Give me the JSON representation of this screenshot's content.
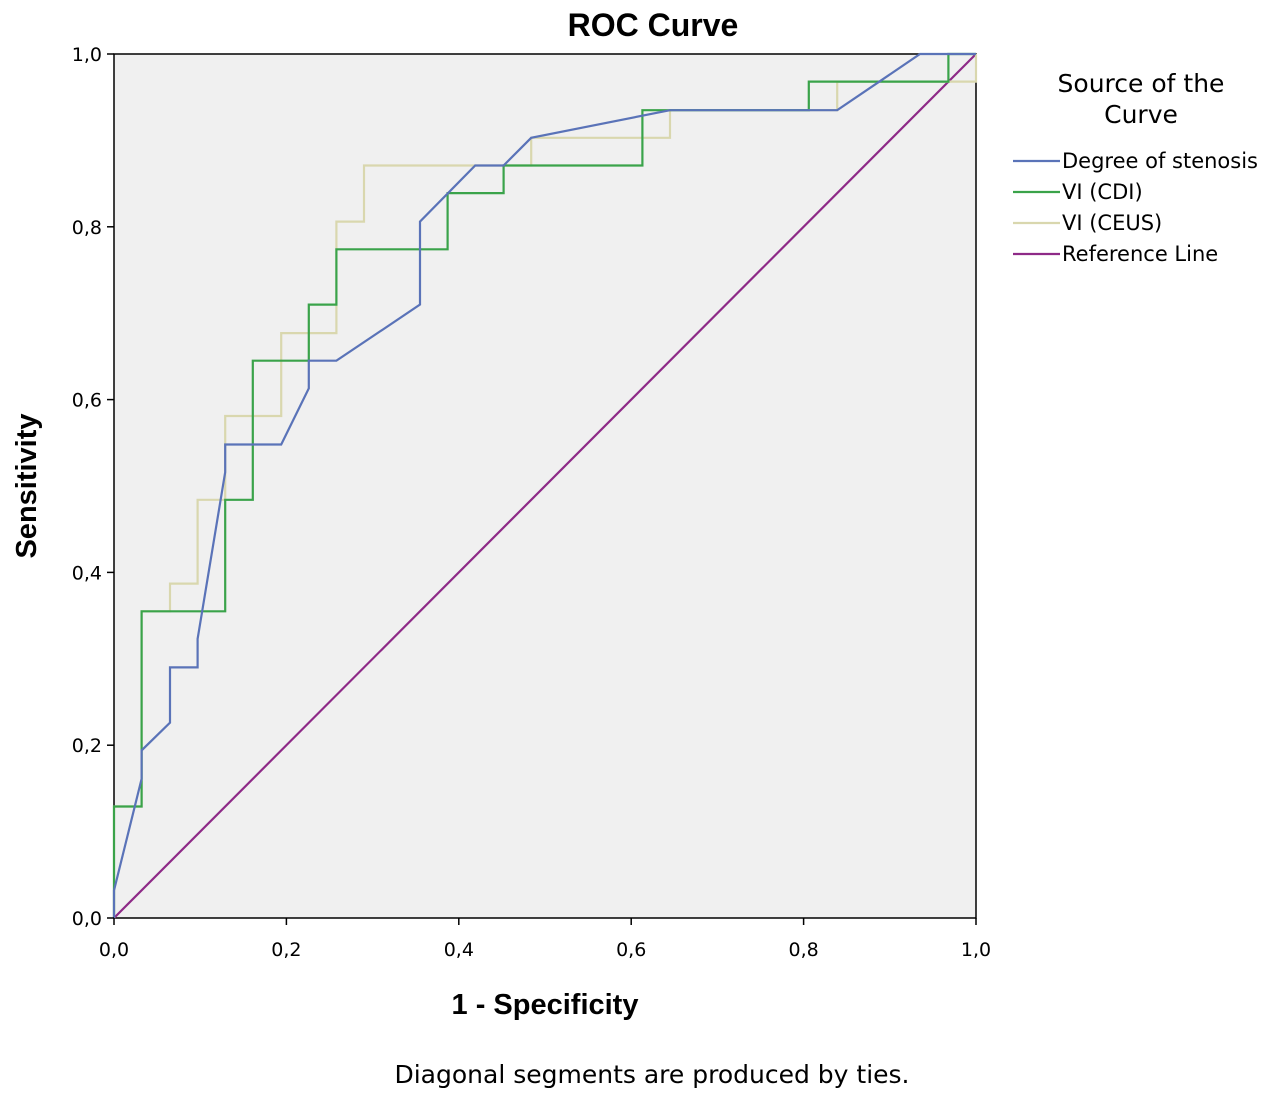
{
  "chart_data": {
    "type": "line",
    "title": "ROC Curve",
    "xlabel": "1 - Specificity",
    "ylabel": "Sensitivity",
    "xlim": [
      0,
      1
    ],
    "ylim": [
      0,
      1
    ],
    "x_ticks": [
      "0,0",
      "0,2",
      "0,4",
      "0,6",
      "0,8",
      "1,0"
    ],
    "y_ticks": [
      "0,0",
      "0,2",
      "0,4",
      "0,6",
      "0,8",
      "1,0"
    ],
    "grid": false,
    "legend_title": "Source of the Curve",
    "legend_title_lines": [
      "Source of the",
      "Curve"
    ],
    "legend_position": "right",
    "footnote": "Diagonal segments are produced by ties.",
    "series": [
      {
        "name": "Degree of stenosis",
        "color": "#5a73b8",
        "points": [
          [
            0,
            0
          ],
          [
            0,
            0.032
          ],
          [
            0.032,
            0.161
          ],
          [
            0.032,
            0.194
          ],
          [
            0.065,
            0.226
          ],
          [
            0.065,
            0.29
          ],
          [
            0.097,
            0.29
          ],
          [
            0.097,
            0.323
          ],
          [
            0.129,
            0.516
          ],
          [
            0.129,
            0.548
          ],
          [
            0.194,
            0.548
          ],
          [
            0.226,
            0.613
          ],
          [
            0.226,
            0.645
          ],
          [
            0.258,
            0.645
          ],
          [
            0.355,
            0.71
          ],
          [
            0.355,
            0.806
          ],
          [
            0.419,
            0.871
          ],
          [
            0.452,
            0.871
          ],
          [
            0.484,
            0.903
          ],
          [
            0.645,
            0.935
          ],
          [
            0.839,
            0.935
          ],
          [
            0.935,
            1.0
          ],
          [
            1.0,
            1.0
          ]
        ]
      },
      {
        "name": "VI (CDI)",
        "color": "#3aa34a",
        "points": [
          [
            0,
            0
          ],
          [
            0,
            0.129
          ],
          [
            0.032,
            0.129
          ],
          [
            0.032,
            0.355
          ],
          [
            0.129,
            0.355
          ],
          [
            0.129,
            0.484
          ],
          [
            0.161,
            0.484
          ],
          [
            0.161,
            0.645
          ],
          [
            0.226,
            0.645
          ],
          [
            0.226,
            0.71
          ],
          [
            0.258,
            0.71
          ],
          [
            0.258,
            0.774
          ],
          [
            0.387,
            0.774
          ],
          [
            0.387,
            0.839
          ],
          [
            0.452,
            0.839
          ],
          [
            0.452,
            0.871
          ],
          [
            0.613,
            0.871
          ],
          [
            0.613,
            0.935
          ],
          [
            0.806,
            0.935
          ],
          [
            0.806,
            0.968
          ],
          [
            0.968,
            0.968
          ],
          [
            0.968,
            1.0
          ],
          [
            1.0,
            1.0
          ]
        ]
      },
      {
        "name": "VI (CEUS)",
        "color": "#d9d7ae",
        "points": [
          [
            0,
            0
          ],
          [
            0,
            0.129
          ],
          [
            0.032,
            0.129
          ],
          [
            0.032,
            0.355
          ],
          [
            0.065,
            0.355
          ],
          [
            0.065,
            0.387
          ],
          [
            0.097,
            0.387
          ],
          [
            0.097,
            0.484
          ],
          [
            0.129,
            0.484
          ],
          [
            0.129,
            0.581
          ],
          [
            0.194,
            0.581
          ],
          [
            0.194,
            0.677
          ],
          [
            0.258,
            0.677
          ],
          [
            0.258,
            0.806
          ],
          [
            0.29,
            0.806
          ],
          [
            0.29,
            0.871
          ],
          [
            0.484,
            0.871
          ],
          [
            0.484,
            0.903
          ],
          [
            0.645,
            0.903
          ],
          [
            0.645,
            0.935
          ],
          [
            0.839,
            0.935
          ],
          [
            0.839,
            0.968
          ],
          [
            1.0,
            0.968
          ],
          [
            1.0,
            1.0
          ]
        ]
      },
      {
        "name": "Reference Line",
        "color": "#8e2a87",
        "points": [
          [
            0,
            0
          ],
          [
            1,
            1
          ]
        ]
      }
    ]
  }
}
